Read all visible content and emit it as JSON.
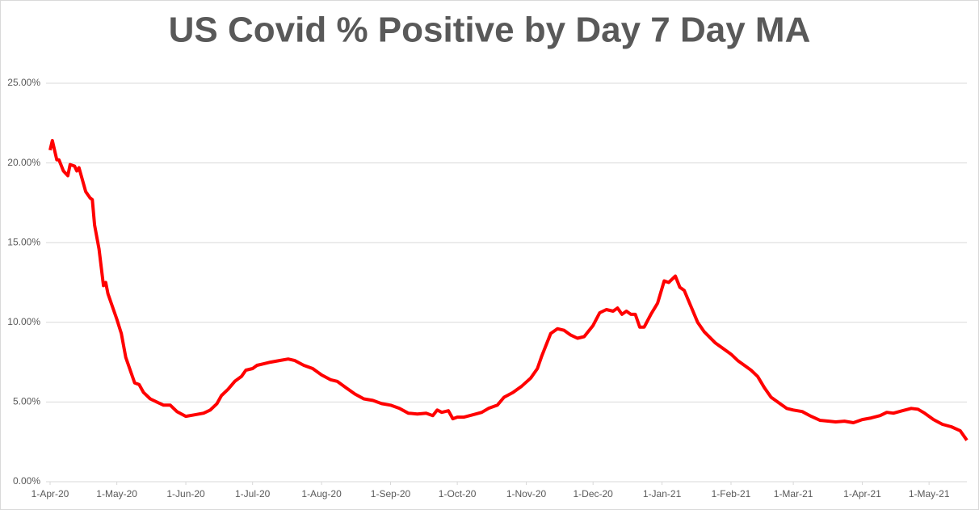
{
  "chart_data": {
    "type": "line",
    "title": "US Covid % Positive by Day 7 Day MA",
    "x": [
      "2020-04-01",
      "2020-04-02",
      "2020-04-04",
      "2020-04-05",
      "2020-04-07",
      "2020-04-09",
      "2020-04-10",
      "2020-04-12",
      "2020-04-13",
      "2020-04-14",
      "2020-04-17",
      "2020-04-19",
      "2020-04-20",
      "2020-04-21",
      "2020-04-23",
      "2020-04-25",
      "2020-04-26",
      "2020-04-27",
      "2020-04-29",
      "2020-05-01",
      "2020-05-03",
      "2020-05-05",
      "2020-05-07",
      "2020-05-09",
      "2020-05-11",
      "2020-05-13",
      "2020-05-16",
      "2020-05-19",
      "2020-05-22",
      "2020-05-25",
      "2020-05-28",
      "2020-06-01",
      "2020-06-05",
      "2020-06-09",
      "2020-06-12",
      "2020-06-15",
      "2020-06-17",
      "2020-06-20",
      "2020-06-23",
      "2020-06-26",
      "2020-06-28",
      "2020-07-01",
      "2020-07-03",
      "2020-07-06",
      "2020-07-09",
      "2020-07-13",
      "2020-07-17",
      "2020-07-20",
      "2020-07-24",
      "2020-07-28",
      "2020-08-01",
      "2020-08-05",
      "2020-08-08",
      "2020-08-12",
      "2020-08-16",
      "2020-08-20",
      "2020-08-24",
      "2020-08-28",
      "2020-09-01",
      "2020-09-05",
      "2020-09-09",
      "2020-09-13",
      "2020-09-17",
      "2020-09-20",
      "2020-09-22",
      "2020-09-24",
      "2020-09-27",
      "2020-09-29",
      "2020-10-01",
      "2020-10-04",
      "2020-10-08",
      "2020-10-12",
      "2020-10-15",
      "2020-10-19",
      "2020-10-22",
      "2020-10-26",
      "2020-10-30",
      "2020-11-03",
      "2020-11-06",
      "2020-11-08",
      "2020-11-10",
      "2020-11-12",
      "2020-11-15",
      "2020-11-18",
      "2020-11-21",
      "2020-11-24",
      "2020-11-27",
      "2020-12-01",
      "2020-12-04",
      "2020-12-07",
      "2020-12-10",
      "2020-12-12",
      "2020-12-14",
      "2020-12-16",
      "2020-12-18",
      "2020-12-20",
      "2020-12-22",
      "2020-12-24",
      "2020-12-27",
      "2020-12-30",
      "2021-01-02",
      "2021-01-04",
      "2021-01-07",
      "2021-01-09",
      "2021-01-11",
      "2021-01-14",
      "2021-01-17",
      "2021-01-20",
      "2021-01-25",
      "2021-01-29",
      "2021-02-01",
      "2021-02-04",
      "2021-02-07",
      "2021-02-10",
      "2021-02-13",
      "2021-02-16",
      "2021-02-19",
      "2021-02-23",
      "2021-02-26",
      "2021-03-01",
      "2021-03-05",
      "2021-03-09",
      "2021-03-13",
      "2021-03-17",
      "2021-03-20",
      "2021-03-24",
      "2021-03-28",
      "2021-04-01",
      "2021-04-05",
      "2021-04-09",
      "2021-04-12",
      "2021-04-15",
      "2021-04-19",
      "2021-04-23",
      "2021-04-26",
      "2021-04-29",
      "2021-05-03",
      "2021-05-07",
      "2021-05-11",
      "2021-05-15",
      "2021-05-18"
    ],
    "series": [
      {
        "name": "% Positive",
        "color": "#ff0000",
        "values": [
          20.8,
          21.4,
          20.2,
          20.2,
          19.5,
          19.2,
          19.9,
          19.8,
          19.5,
          19.7,
          18.2,
          17.8,
          17.7,
          16.1,
          14.6,
          12.3,
          12.5,
          11.8,
          11.0,
          10.2,
          9.3,
          7.8,
          7.0,
          6.2,
          6.1,
          5.6,
          5.2,
          5.0,
          4.8,
          4.8,
          4.4,
          4.1,
          4.2,
          4.3,
          4.5,
          4.9,
          5.4,
          5.8,
          6.3,
          6.6,
          7.0,
          7.1,
          7.3,
          7.4,
          7.5,
          7.6,
          7.7,
          7.6,
          7.3,
          7.1,
          6.7,
          6.4,
          6.3,
          5.9,
          5.5,
          5.2,
          5.1,
          4.9,
          4.8,
          4.6,
          4.3,
          4.25,
          4.3,
          4.15,
          4.5,
          4.35,
          4.45,
          3.95,
          4.05,
          4.05,
          4.2,
          4.35,
          4.6,
          4.8,
          5.3,
          5.6,
          6.0,
          6.5,
          7.1,
          7.9,
          8.6,
          9.3,
          9.6,
          9.5,
          9.2,
          9.0,
          9.1,
          9.8,
          10.6,
          10.8,
          10.7,
          10.9,
          10.5,
          10.7,
          10.5,
          10.5,
          9.7,
          9.7,
          10.5,
          11.2,
          12.6,
          12.5,
          12.9,
          12.2,
          12.0,
          11.0,
          10.0,
          9.4,
          8.7,
          8.3,
          8.0,
          7.6,
          7.3,
          7.0,
          6.6,
          5.9,
          5.3,
          4.9,
          4.6,
          4.5,
          4.4,
          4.1,
          3.85,
          3.8,
          3.75,
          3.8,
          3.7,
          3.9,
          4.0,
          4.15,
          4.35,
          4.3,
          4.45,
          4.6,
          4.55,
          4.3,
          3.9,
          3.6,
          3.45,
          3.2,
          2.6
        ]
      }
    ],
    "xlim": [
      "2020-04-01",
      "2021-05-18"
    ],
    "xticks": [
      {
        "value": "2020-04-01",
        "label": "1-Apr-20"
      },
      {
        "value": "2020-05-01",
        "label": "1-May-20"
      },
      {
        "value": "2020-06-01",
        "label": "1-Jun-20"
      },
      {
        "value": "2020-07-01",
        "label": "1-Jul-20"
      },
      {
        "value": "2020-08-01",
        "label": "1-Aug-20"
      },
      {
        "value": "2020-09-01",
        "label": "1-Sep-20"
      },
      {
        "value": "2020-10-01",
        "label": "1-Oct-20"
      },
      {
        "value": "2020-11-01",
        "label": "1-Nov-20"
      },
      {
        "value": "2020-12-01",
        "label": "1-Dec-20"
      },
      {
        "value": "2021-01-01",
        "label": "1-Jan-21"
      },
      {
        "value": "2021-02-01",
        "label": "1-Feb-21"
      },
      {
        "value": "2021-03-01",
        "label": "1-Mar-21"
      },
      {
        "value": "2021-04-01",
        "label": "1-Apr-21"
      },
      {
        "value": "2021-05-01",
        "label": "1-May-21"
      }
    ],
    "ylim": [
      0,
      25
    ],
    "yticks": [
      {
        "value": 0,
        "label": "0.00%"
      },
      {
        "value": 5,
        "label": "5.00%"
      },
      {
        "value": 10,
        "label": "10.00%"
      },
      {
        "value": 15,
        "label": "15.00%"
      },
      {
        "value": 20,
        "label": "20.00%"
      },
      {
        "value": 25,
        "label": "25.00%"
      }
    ],
    "grid": true
  }
}
